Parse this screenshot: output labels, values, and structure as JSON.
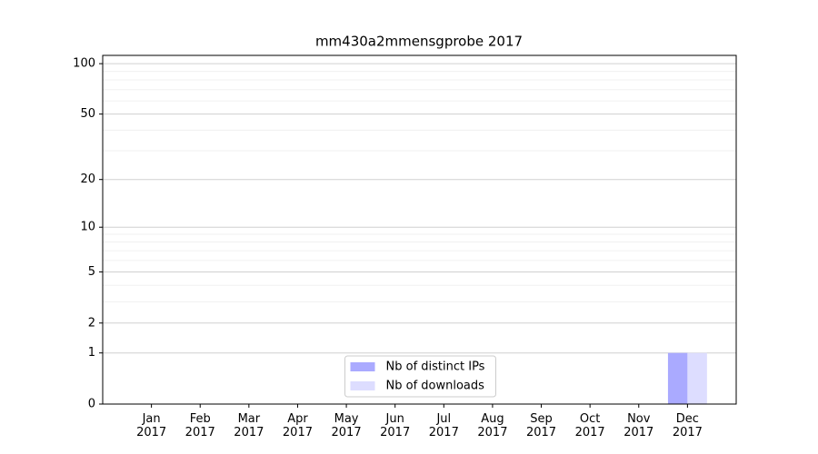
{
  "chart_data": {
    "type": "bar",
    "title": "mm430a2mmensgprobe 2017",
    "categories": [
      "Jan 2017",
      "Feb 2017",
      "Mar 2017",
      "Apr 2017",
      "May 2017",
      "Jun 2017",
      "Jul 2017",
      "Aug 2017",
      "Sep 2017",
      "Oct 2017",
      "Nov 2017",
      "Dec 2017"
    ],
    "series": [
      {
        "name": "Nb of distinct IPs",
        "color": "#aaaaff",
        "values": [
          0,
          0,
          0,
          0,
          0,
          0,
          0,
          0,
          0,
          0,
          0,
          1
        ]
      },
      {
        "name": "Nb of downloads",
        "color": "#ddddff",
        "values": [
          0,
          0,
          0,
          0,
          0,
          0,
          0,
          0,
          0,
          0,
          0,
          1
        ]
      }
    ],
    "yscale": "log1p",
    "ylim": [
      0,
      112
    ],
    "yticks": [
      0,
      1,
      2,
      5,
      10,
      20,
      50,
      100
    ],
    "minor_yticks": [
      3,
      4,
      6,
      7,
      8,
      9,
      30,
      40,
      60,
      70,
      80,
      90
    ],
    "grid": true,
    "legend": "bottom-center"
  }
}
